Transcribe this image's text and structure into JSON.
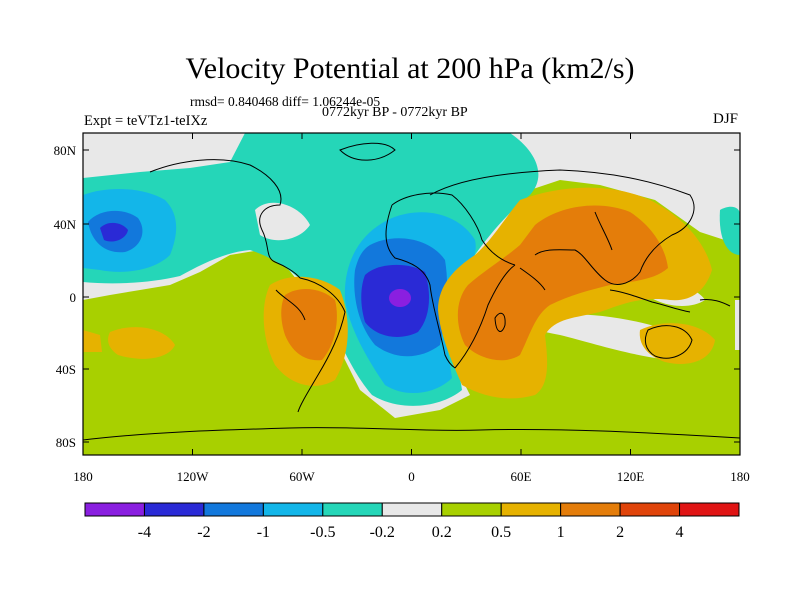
{
  "title": "Velocity Potential at 200 hPa (km2/s)",
  "stats": "rmsd= 0.840468 diff= 1.06244e-05",
  "experiment": "Expt = teVTz1-teIXz",
  "period": "0772kyr BP - 0772kyr BP",
  "season": "DJF",
  "lat_ticks": [
    "80N",
    "40N",
    "0",
    "40S",
    "80S"
  ],
  "lon_ticks": [
    "180",
    "120W",
    "60W",
    "0",
    "60E",
    "120E",
    "180"
  ],
  "colorbar": {
    "colors": [
      "#8a1fe0",
      "#2a2ad6",
      "#1278dc",
      "#13b6e9",
      "#25d6b8",
      "#e8e8e8",
      "#a8d000",
      "#e6b200",
      "#e47d0a",
      "#e0440a",
      "#e01414"
    ],
    "labels": [
      "-4",
      "-2",
      "-1",
      "-0.5",
      "-0.2",
      "0.2",
      "0.5",
      "1",
      "2",
      "4"
    ]
  }
}
